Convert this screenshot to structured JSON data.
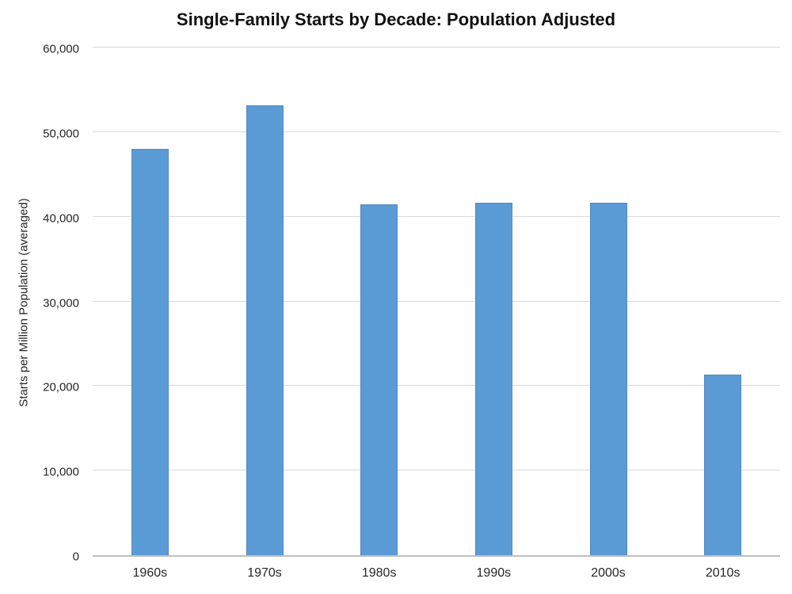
{
  "chart_data": {
    "type": "bar",
    "title": "Single-Family Starts by Decade: Population Adjusted",
    "xlabel": "",
    "ylabel": "Starts per Million Population (averaged)",
    "categories": [
      "1960s",
      "1970s",
      "1980s",
      "1990s",
      "2000s",
      "2010s"
    ],
    "values": [
      48000,
      53200,
      41500,
      41700,
      41700,
      21300
    ],
    "ylim": [
      0,
      60000
    ],
    "ytick_interval": 10000,
    "yticks": [
      0,
      10000,
      20000,
      30000,
      40000,
      50000,
      60000
    ],
    "ytick_labels": [
      "0",
      "10,000",
      "20,000",
      "30,000",
      "40,000",
      "50,000",
      "60,000"
    ],
    "grid": "horizontal",
    "legend": "none",
    "colors": {
      "bar_fill": "#5b9bd5",
      "gridline": "#d9d9d9",
      "axis_line": "#bfbfbf",
      "text": "#262626",
      "title_text": "#111111",
      "background": "#ffffff"
    }
  }
}
